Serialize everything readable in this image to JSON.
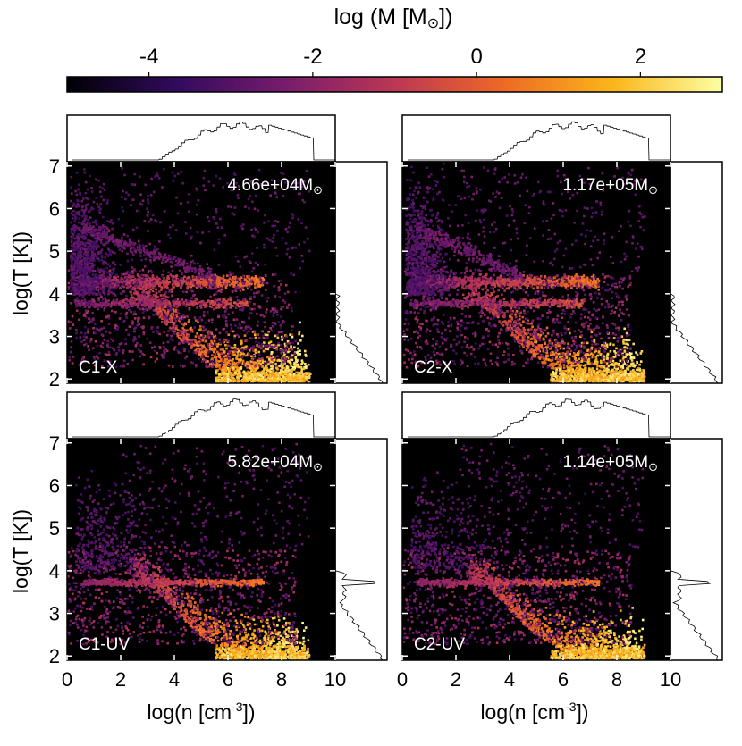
{
  "colorbar": {
    "label_prefix": "log (M [M",
    "label_sun": "⊙",
    "label_suffix": "])",
    "ticks": [
      "-4",
      "-2",
      "0",
      "2"
    ],
    "range": [
      -5,
      3
    ],
    "colormap": "inferno",
    "colors": [
      "#000004",
      "#320a5e",
      "#781c6d",
      "#bc3754",
      "#ed6925",
      "#fbb61a",
      "#fcffa4"
    ]
  },
  "x_axis": {
    "label_prefix": "log(n [cm",
    "label_sup": "-3",
    "label_suffix": "])",
    "range": [
      0,
      10
    ],
    "ticks": [
      "0",
      "2",
      "4",
      "6",
      "8",
      "10"
    ]
  },
  "y_axis": {
    "label": "log(T [K])",
    "range": [
      1.9,
      7.1
    ],
    "ticks": [
      "2",
      "3",
      "4",
      "5",
      "6",
      "7"
    ]
  },
  "chart_data": [
    {
      "type": "heatmap",
      "label": "C1-X",
      "mass_value": "4.66e+04",
      "mass_unit": "M",
      "mass_sun": "⊙",
      "background": "#000000",
      "xlim": [
        0,
        10
      ],
      "ylim": [
        1.9,
        7.1
      ],
      "features": "hot diffuse gas at log n 0-1.5 up to log T 6.5; warm plateau log T 4.3 and 3.8 to log n 7; cooling track descending to log T 2 at log n 8-9"
    },
    {
      "type": "heatmap",
      "label": "C2-X",
      "mass_value": "1.17e+05",
      "mass_unit": "M",
      "mass_sun": "⊙",
      "background": "#000000",
      "xlim": [
        0,
        10
      ],
      "ylim": [
        1.9,
        7.1
      ]
    },
    {
      "type": "heatmap",
      "label": "C1-UV",
      "mass_value": "5.82e+04",
      "mass_unit": "M",
      "mass_sun": "⊙",
      "background": "#000000",
      "xlim": [
        0,
        10
      ],
      "ylim": [
        1.9,
        7.1
      ]
    },
    {
      "type": "heatmap",
      "label": "C2-UV",
      "mass_value": "1.14e+05",
      "mass_unit": "M",
      "mass_sun": "⊙",
      "background": "#000000",
      "xlim": [
        0,
        10
      ],
      "ylim": [
        1.9,
        7.1
      ]
    }
  ]
}
